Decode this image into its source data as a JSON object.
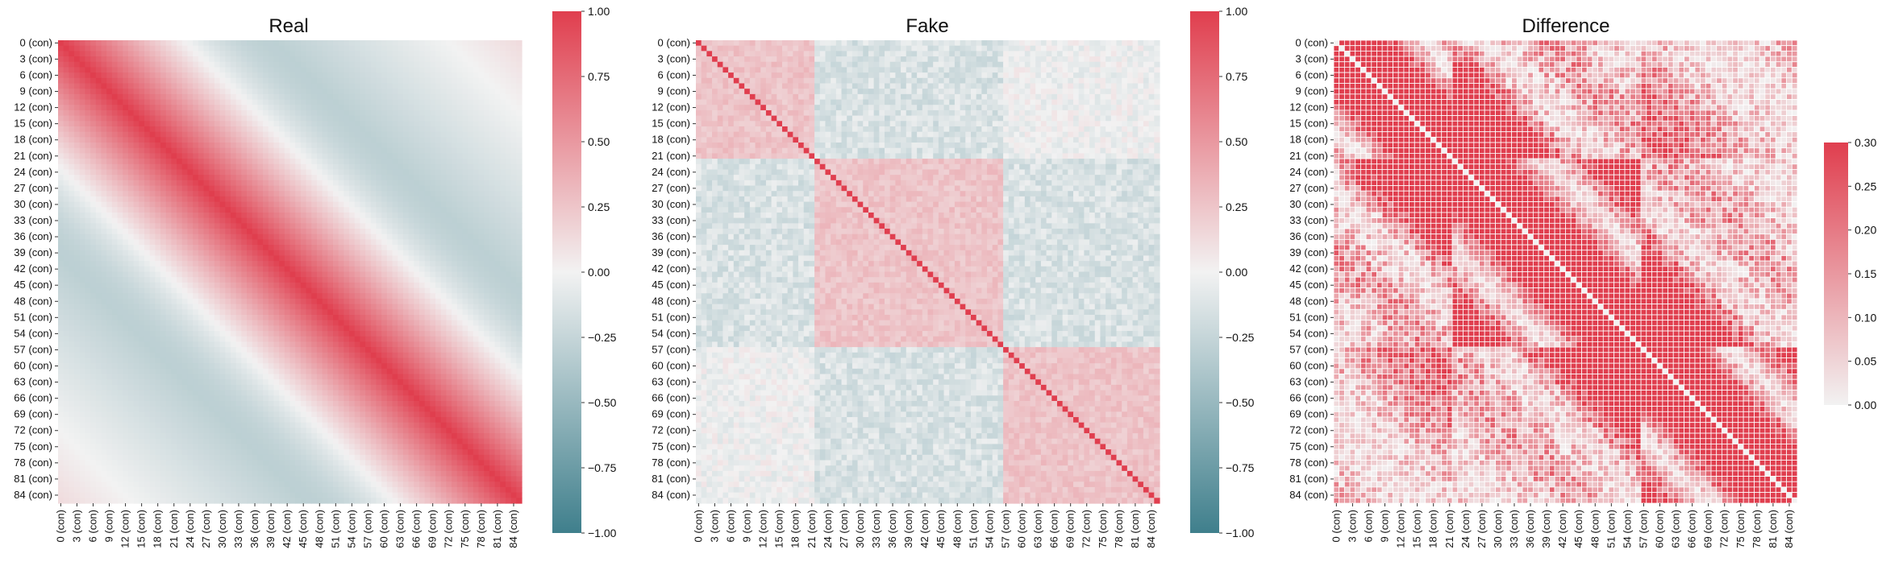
{
  "chart_data": [
    {
      "type": "heatmap",
      "title": "Real",
      "variables": 86,
      "tick_labels": [
        "0 (con)",
        "3 (con)",
        "6 (con)",
        "9 (con)",
        "12 (con)",
        "15 (con)",
        "18 (con)",
        "21 (con)",
        "24 (con)",
        "27 (con)",
        "30 (con)",
        "33 (con)",
        "36 (con)",
        "39 (con)",
        "42 (con)",
        "45 (con)",
        "48 (con)",
        "51 (con)",
        "54 (con)",
        "57 (con)",
        "60 (con)",
        "63 (con)",
        "66 (con)",
        "69 (con)",
        "72 (con)",
        "75 (con)",
        "78 (con)",
        "81 (con)",
        "84 (con)"
      ],
      "colorbar": {
        "vmin": -1.0,
        "vmax": 1.0,
        "tick_values": [
          1.0,
          0.75,
          0.5,
          0.25,
          0.0,
          -0.25,
          -0.5,
          -0.75,
          -1.0
        ],
        "tick_labels": [
          "1.00",
          "0.75",
          "0.50",
          "0.25",
          "0.00",
          "−0.25",
          "−0.50",
          "−0.75",
          "−1.00"
        ]
      },
      "pattern": "smooth banded correlation: 1.0 on diagonal decaying to about -0.3 at distance ~40, rising back toward +0.1 at the far corners",
      "gridlines": false
    },
    {
      "type": "heatmap",
      "title": "Fake",
      "variables": 86,
      "tick_labels": [
        "0 (con)",
        "3 (con)",
        "6 (con)",
        "9 (con)",
        "12 (con)",
        "15 (con)",
        "18 (con)",
        "21 (con)",
        "24 (con)",
        "27 (con)",
        "30 (con)",
        "33 (con)",
        "36 (con)",
        "39 (con)",
        "42 (con)",
        "45 (con)",
        "48 (con)",
        "51 (con)",
        "54 (con)",
        "57 (con)",
        "60 (con)",
        "63 (con)",
        "66 (con)",
        "69 (con)",
        "72 (con)",
        "75 (con)",
        "78 (con)",
        "81 (con)",
        "84 (con)"
      ],
      "colorbar": {
        "vmin": -1.0,
        "vmax": 1.0,
        "tick_values": [
          1.0,
          0.75,
          0.5,
          0.25,
          0.0,
          -0.25,
          -0.5,
          -0.75,
          -1.0
        ],
        "tick_labels": [
          "1.00",
          "0.75",
          "0.50",
          "0.25",
          "0.00",
          "−0.25",
          "−0.50",
          "−0.75",
          "−1.00"
        ]
      },
      "blocks": [
        [
          0,
          21
        ],
        [
          22,
          56
        ],
        [
          57,
          85
        ]
      ],
      "pattern": "block structure: within-block correlation ~0.2-0.35, between-block ~-0.2, diagonal 1.0",
      "gridlines": false
    },
    {
      "type": "heatmap",
      "title": "Difference",
      "variables": 86,
      "tick_labels": [
        "0 (con)",
        "3 (con)",
        "6 (con)",
        "9 (con)",
        "12 (con)",
        "15 (con)",
        "18 (con)",
        "21 (con)",
        "24 (con)",
        "27 (con)",
        "30 (con)",
        "33 (con)",
        "36 (con)",
        "39 (con)",
        "42 (con)",
        "45 (con)",
        "48 (con)",
        "51 (con)",
        "54 (con)",
        "57 (con)",
        "60 (con)",
        "63 (con)",
        "66 (con)",
        "69 (con)",
        "72 (con)",
        "75 (con)",
        "78 (con)",
        "81 (con)",
        "84 (con)"
      ],
      "colorbar": {
        "vmin": 0.0,
        "vmax": 0.3,
        "tick_values": [
          0.3,
          0.25,
          0.2,
          0.15,
          0.1,
          0.05,
          0.0
        ],
        "tick_labels": [
          "0.30",
          "0.25",
          "0.20",
          "0.15",
          "0.10",
          "0.05",
          "0.00"
        ]
      },
      "pattern": "absolute difference |Real - Fake|, 0 on the diagonal, largest (>=0.3) in a band near the diagonal",
      "gridlines": true
    }
  ],
  "colors": {
    "negative": "#3f7f8c",
    "neutral": "#f2f2f2",
    "positive": "#e03e4e",
    "grid": "#ffffff"
  }
}
